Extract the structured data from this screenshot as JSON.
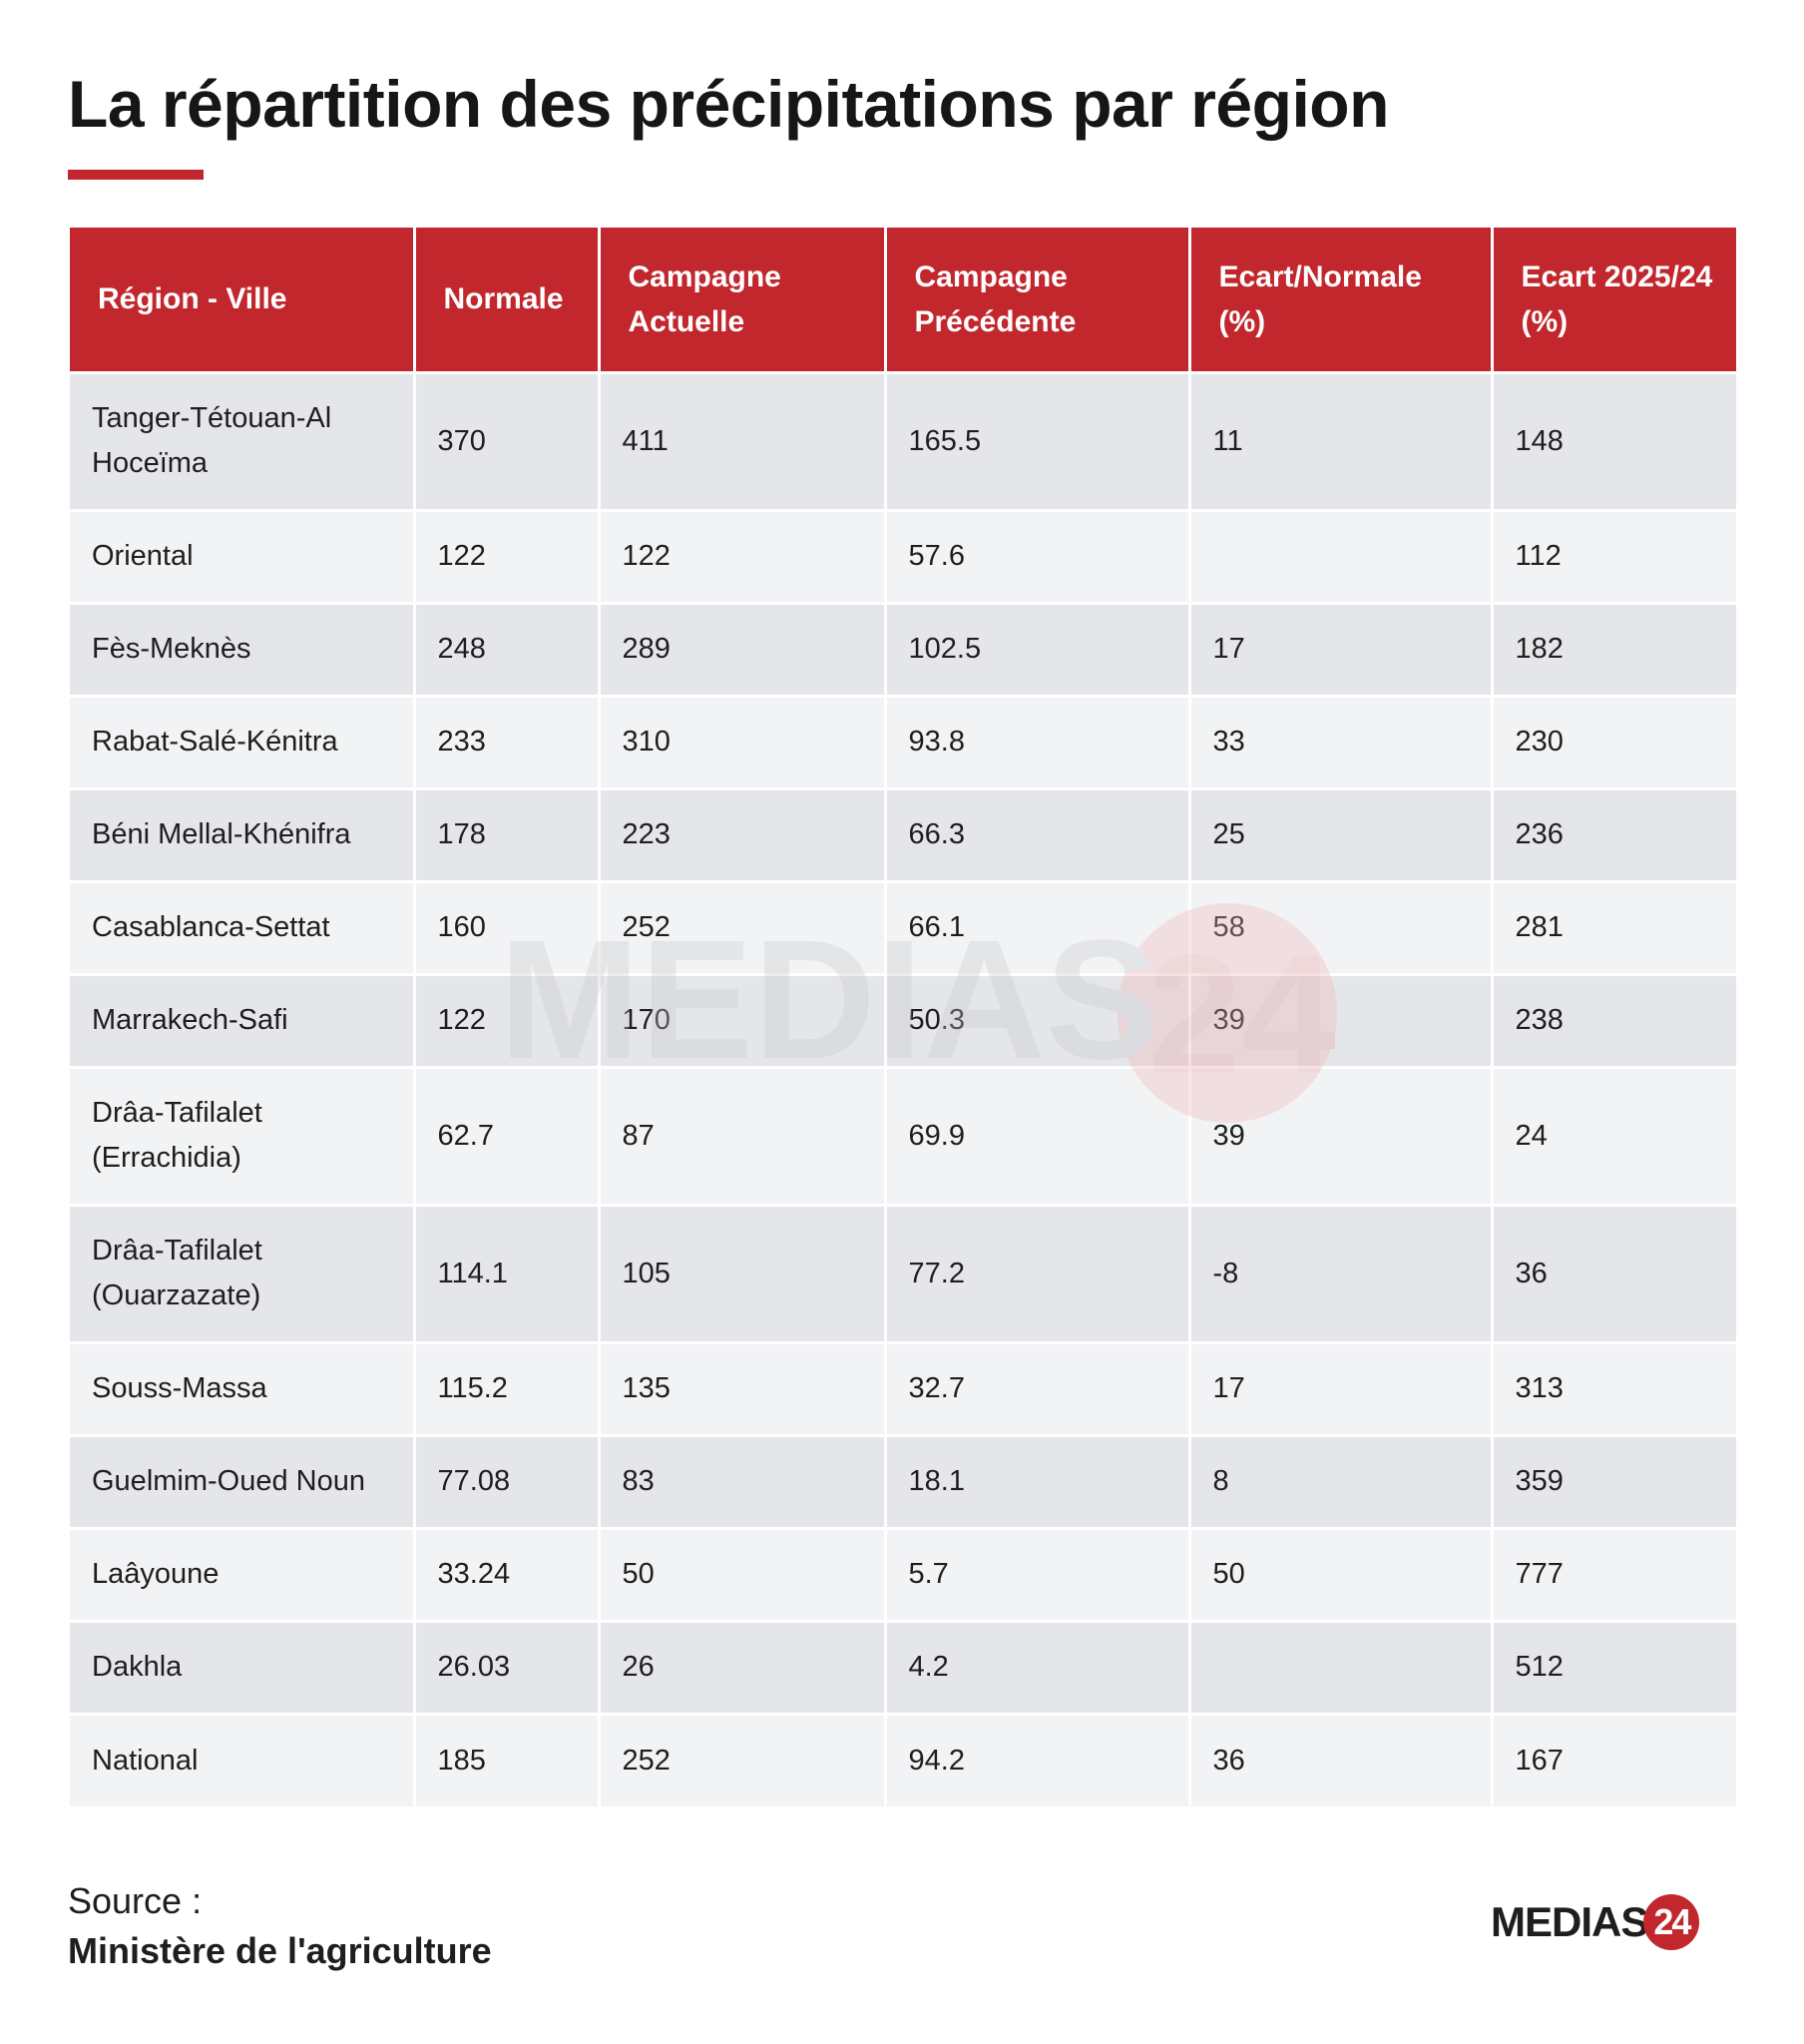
{
  "title": "La répartition des précipitations par région",
  "chart_data": {
    "type": "table",
    "columns": [
      "Région - Ville",
      "Normale",
      "Campagne Actuelle",
      "Campagne Précédente",
      "Ecart/Normale (%)",
      "Ecart 2025/24 (%)"
    ],
    "rows": [
      [
        "Tanger-Tétouan-Al Hoceïma",
        "370",
        "411",
        "165.5",
        "11",
        "148"
      ],
      [
        "Oriental",
        "122",
        "122",
        "57.6",
        "",
        "112"
      ],
      [
        "Fès-Meknès",
        "248",
        "289",
        "102.5",
        "17",
        "182"
      ],
      [
        "Rabat-Salé-Kénitra",
        "233",
        "310",
        "93.8",
        "33",
        "230"
      ],
      [
        "Béni Mellal-Khénifra",
        "178",
        "223",
        "66.3",
        "25",
        "236"
      ],
      [
        "Casablanca-Settat",
        "160",
        "252",
        "66.1",
        "58",
        "281"
      ],
      [
        "Marrakech-Safi",
        "122",
        "170",
        "50.3",
        "39",
        "238"
      ],
      [
        "Drâa-Tafilalet (Errachidia)",
        "62.7",
        "87",
        "69.9",
        "39",
        "24"
      ],
      [
        "Drâa-Tafilalet (Ouarzazate)",
        "114.1",
        "105",
        "77.2",
        "-8",
        "36"
      ],
      [
        "Souss-Massa",
        "115.2",
        "135",
        "32.7",
        "17",
        "313"
      ],
      [
        "Guelmim-Oued Noun",
        "77.08",
        "83",
        "18.1",
        "8",
        "359"
      ],
      [
        "Laâyoune",
        "33.24",
        "50",
        "5.7",
        "50",
        "777"
      ],
      [
        "Dakhla",
        "26.03",
        "26",
        "4.2",
        "",
        "512"
      ],
      [
        "National",
        "185",
        "252",
        "94.2",
        "36",
        "167"
      ]
    ]
  },
  "source": {
    "label": "Source :",
    "value": "Ministère de l'agriculture"
  },
  "logo": {
    "text": "MEDIAS",
    "number": "24"
  },
  "watermark": {
    "text": "MEDIAS",
    "number": "24"
  },
  "colors": {
    "accent": "#c1272d",
    "row_odd": "#e5e6e9",
    "row_even": "#f2f3f5"
  }
}
